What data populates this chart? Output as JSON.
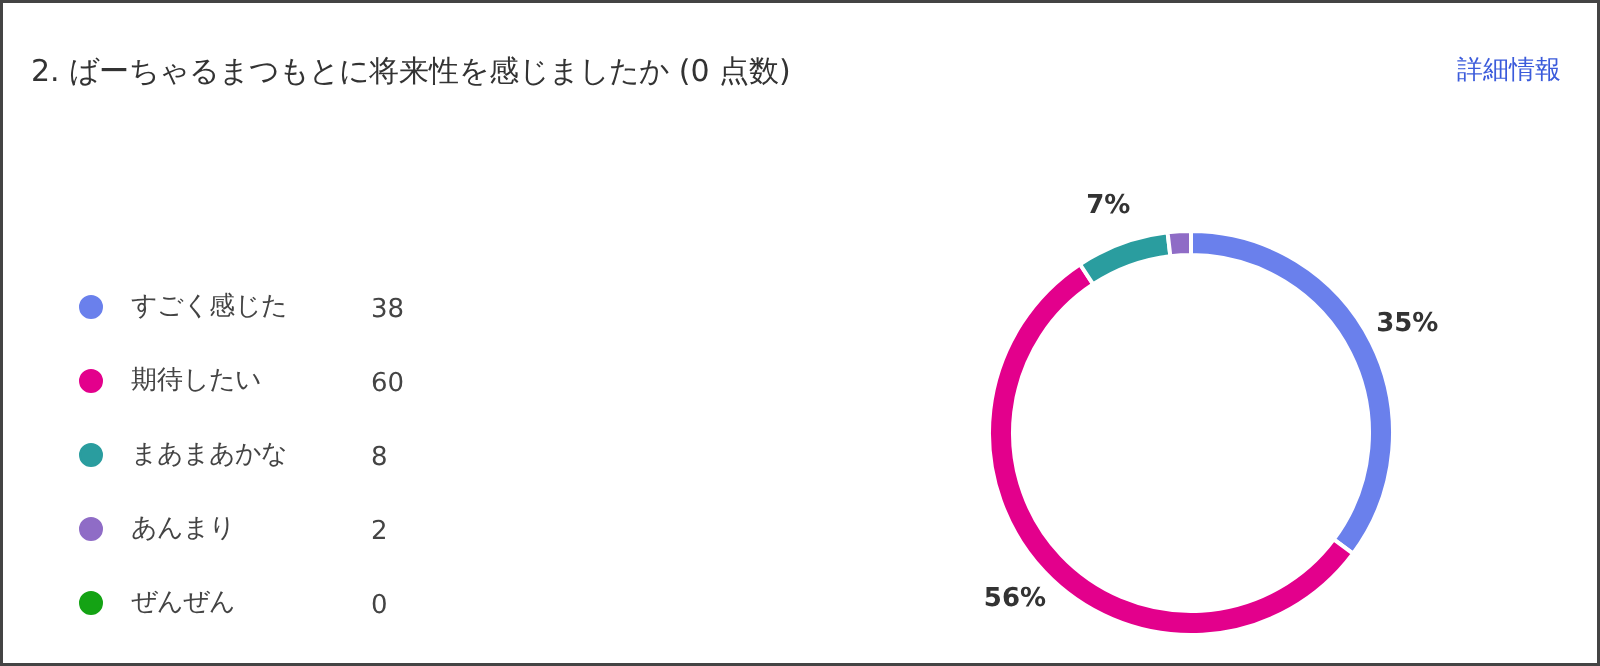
{
  "chart_data": {
    "type": "donut",
    "title": "2. ばーちゃるまつもとに将来性を感じましたか (0 点数)",
    "categories": [
      "すごく感じた",
      "期待したい",
      "まあまあかな",
      "あんまり",
      "ぜんぜん"
    ],
    "values": [
      35.19,
      55.56,
      7.41,
      1.85,
      0
    ],
    "colors": [
      "#6a80ec",
      "#e3008c",
      "#2a9d9f",
      "#8f6cc6",
      "#14a314"
    ],
    "value_labels": [
      "35%",
      "56%",
      "7%",
      null,
      null
    ],
    "legend": "left",
    "annotations": [
      "詳細情報",
      "38",
      "60",
      "8",
      "2",
      "0"
    ]
  }
}
